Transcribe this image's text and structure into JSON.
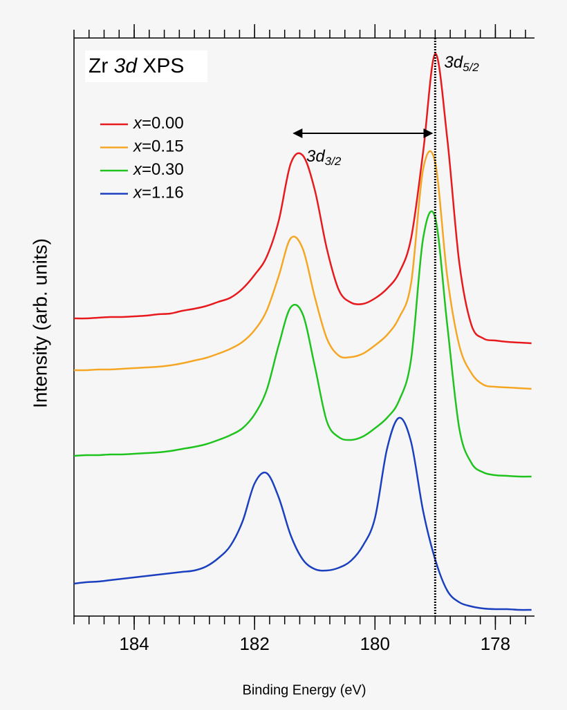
{
  "chart_data": {
    "type": "line",
    "title": "Zr 3d XPS",
    "x_label": "Binding Energy (eV)",
    "y_label": "Intensity (arb. units)",
    "x": [
      185,
      184.8,
      184.6,
      184.4,
      184.2,
      184,
      183.8,
      183.6,
      183.4,
      183.2,
      183,
      182.8,
      182.6,
      182.4,
      182.2,
      182,
      181.8,
      181.6,
      181.4,
      181.2,
      181,
      180.8,
      180.6,
      180.4,
      180.2,
      180,
      179.8,
      179.6,
      179.4,
      179.2,
      179,
      178.8,
      178.6,
      178.4,
      178.2,
      178,
      177.8,
      177.6,
      177.4
    ],
    "series": [
      {
        "name": "x=0.00",
        "color": "#e8191c",
        "values": [
          431,
          431,
          432,
          433,
          433,
          434,
          435,
          437,
          438,
          442,
          445,
          449,
          455,
          461,
          474,
          494,
          520,
          572,
          655,
          667,
          617,
          532,
          472,
          454,
          452,
          460,
          474,
          497,
          547,
          672,
          814,
          692,
          512,
          422,
          402,
          399,
          397,
          396,
          395
        ]
      },
      {
        "name": "x=0.15",
        "color": "#f5a623",
        "values": [
          356,
          356,
          357,
          357,
          358,
          359,
          360,
          361,
          363,
          366,
          370,
          374,
          380,
          387,
          397,
          414,
          442,
          492,
          547,
          532,
          462,
          402,
          377,
          375,
          380,
          392,
          407,
          432,
          482,
          647,
          657,
          492,
          392,
          352,
          335,
          332,
          331,
          330,
          329
        ]
      },
      {
        "name": "x=0.30",
        "color": "#1ec31e",
        "values": [
          232,
          233,
          233,
          234,
          234,
          235,
          236,
          237,
          239,
          242,
          245,
          249,
          255,
          262,
          272,
          292,
          327,
          392,
          447,
          437,
          362,
          282,
          259,
          255,
          260,
          272,
          287,
          312,
          372,
          547,
          577,
          422,
          272,
          222,
          208,
          204,
          203,
          202,
          202
        ]
      },
      {
        "name": "x=1.16",
        "color": "#1a3fbf",
        "values": [
          47,
          49,
          50,
          52,
          54,
          56,
          58,
          60,
          62,
          64,
          66,
          72,
          84,
          102,
          137,
          192,
          207,
          172,
          117,
          82,
          68,
          66,
          70,
          80,
          102,
          142,
          242,
          287,
          252,
          152,
          82,
          37,
          20,
          14,
          11,
          10,
          10,
          9,
          9
        ]
      }
    ],
    "xlim": [
      185,
      177.35
    ],
    "ylim": [
      0,
      837
    ],
    "xticks": [
      184,
      182,
      180,
      178
    ],
    "xminor_interval": 0.25,
    "reference_line_x": 179,
    "arrow": {
      "x_from": 181.35,
      "x_to": 179.05,
      "y": 699
    },
    "annotations": [
      {
        "text": "3d",
        "sub": "3/2",
        "x": 181.14,
        "y": 664
      },
      {
        "text": "3d",
        "sub": "5/2",
        "x": 178.85,
        "y": 800
      }
    ],
    "legend": "upper left"
  }
}
